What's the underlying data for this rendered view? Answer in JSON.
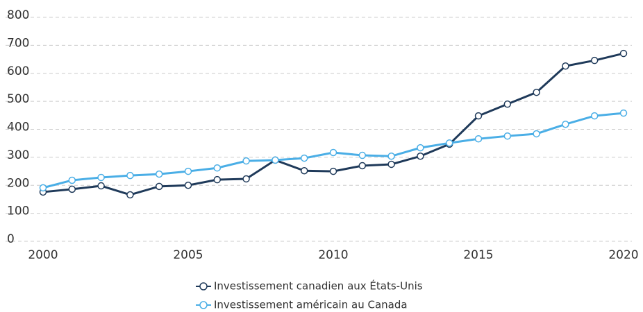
{
  "chart_data": {
    "type": "line",
    "x": [
      2000,
      2001,
      2002,
      2003,
      2004,
      2005,
      2006,
      2007,
      2008,
      2009,
      2010,
      2011,
      2012,
      2013,
      2014,
      2015,
      2016,
      2017,
      2018,
      2019,
      2020
    ],
    "series": [
      {
        "name": "Investissement canadien aux États-Unis",
        "color": "#1f3a5a",
        "values": [
          176,
          186,
          198,
          166,
          196,
          200,
          220,
          223,
          290,
          252,
          250,
          270,
          275,
          304,
          347,
          448,
          490,
          532,
          626,
          646,
          671
        ]
      },
      {
        "name": "Investissement américain au Canada",
        "color": "#4aaee6",
        "values": [
          191,
          218,
          228,
          235,
          240,
          250,
          262,
          287,
          290,
          297,
          317,
          307,
          304,
          334,
          351,
          366,
          376,
          384,
          418,
          448,
          458
        ]
      }
    ],
    "xlim": [
      2000,
      2020
    ],
    "xticks": [
      2000,
      2005,
      2010,
      2015,
      2020
    ],
    "ylim": [
      0,
      800
    ],
    "yticks": [
      0,
      100,
      200,
      300,
      400,
      500,
      600,
      700,
      800
    ],
    "grid": true,
    "legend": "bottom"
  }
}
